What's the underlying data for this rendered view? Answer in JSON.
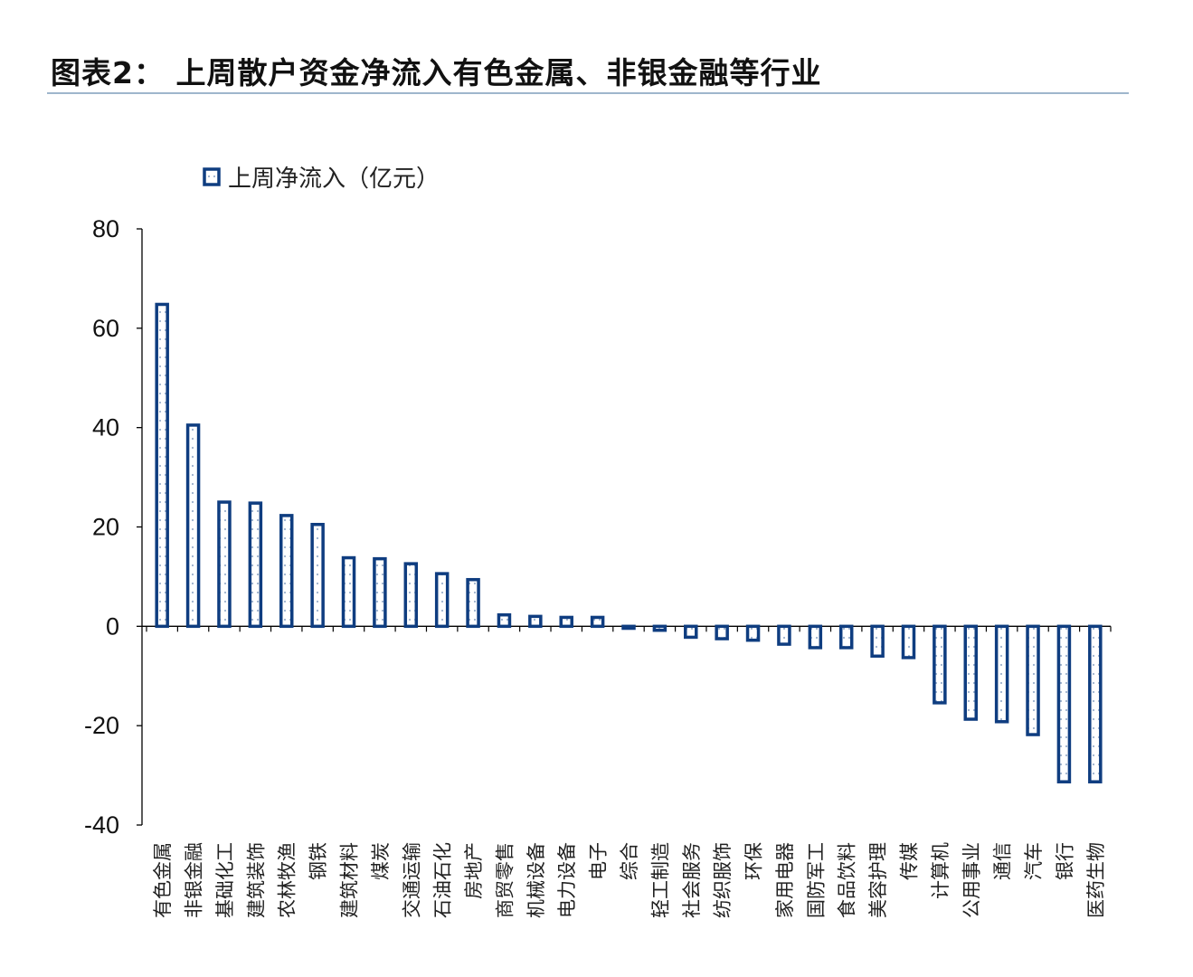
{
  "title": "图表2：  上周散户资金净流入有色金属、非银金融等行业",
  "colors": {
    "bar_stroke": "#0f3d80",
    "bar_fill": "#ffffff",
    "bar_pattern": "#9cb0cc",
    "axis": "#000000",
    "title_rule": "#9fb6cc"
  },
  "chart_data": {
    "type": "bar",
    "title": "",
    "xlabel": "",
    "ylabel": "",
    "ylim": [
      -40,
      80
    ],
    "yticks": [
      80,
      60,
      40,
      20,
      0,
      -20,
      -40
    ],
    "grid": false,
    "legend_position": "top-left",
    "categories": [
      "有色金属",
      "非银金融",
      "基础化工",
      "建筑装饰",
      "农林牧渔",
      "钢铁",
      "建筑材料",
      "煤炭",
      "交通运输",
      "石油石化",
      "房地产",
      "商贸零售",
      "机械设备",
      "电力设备",
      "电子",
      "综合",
      "轻工制造",
      "社会服务",
      "纺织服饰",
      "环保",
      "家用电器",
      "国防军工",
      "食品饮料",
      "美容护理",
      "传媒",
      "计算机",
      "公用事业",
      "通信",
      "汽车",
      "银行",
      "医药生物"
    ],
    "series": [
      {
        "name": "上周净流入（亿元）",
        "values": [
          64.8,
          40.5,
          25.0,
          24.8,
          22.3,
          20.5,
          13.8,
          13.6,
          12.6,
          10.6,
          9.4,
          2.3,
          2.0,
          1.8,
          1.8,
          -0.4,
          -0.8,
          -2.2,
          -2.5,
          -2.8,
          -3.6,
          -4.3,
          -4.3,
          -6.0,
          -6.3,
          -15.4,
          -18.7,
          -19.2,
          -21.8,
          -31.3,
          -31.3
        ]
      }
    ]
  }
}
